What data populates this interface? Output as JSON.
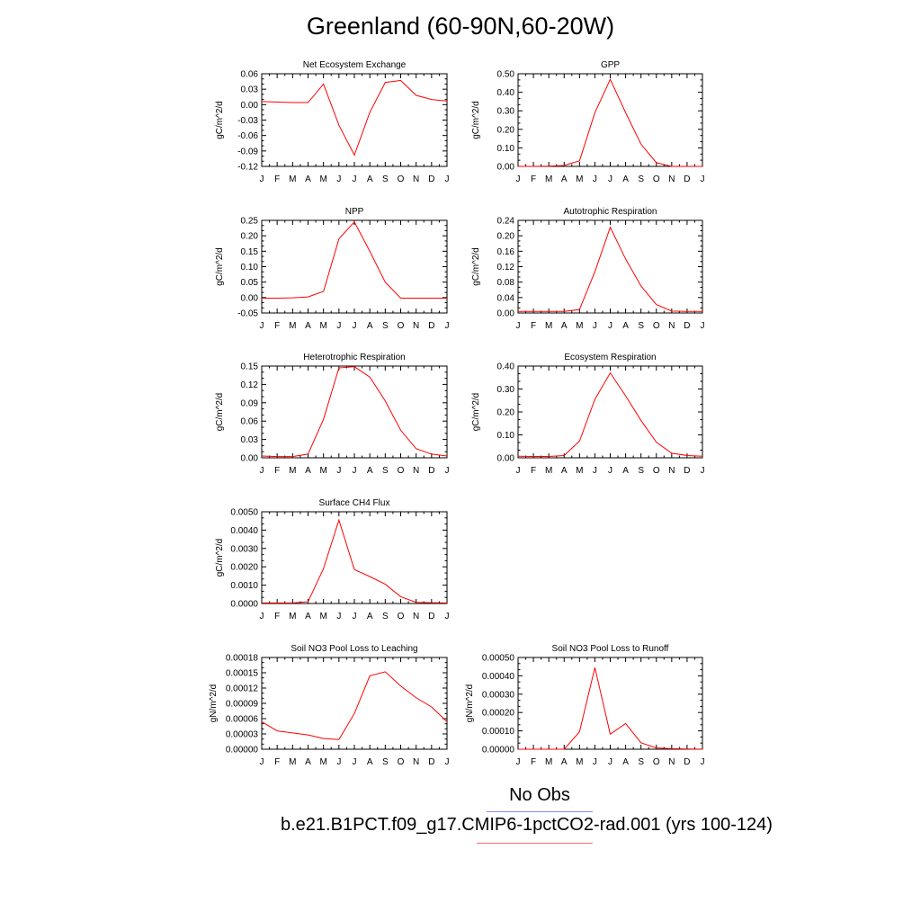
{
  "title": "Greenland (60-90N,60-20W)",
  "legend": {
    "obs_label": "No Obs",
    "obs_color": "#8c8cff",
    "model_label": "b.e21.B1PCT.f09_g17.CMIP6-1pctCO2-rad.001 (yrs 100-124)",
    "model_color": "#ff6e6e"
  },
  "line_color": "#ff0000",
  "chart_data": [
    {
      "type": "line",
      "title": "Net Ecosystem Exchange",
      "ylabel": "gC/m^2/d",
      "xticks": [
        "J",
        "F",
        "M",
        "A",
        "M",
        "J",
        "J",
        "A",
        "S",
        "O",
        "N",
        "D",
        "J"
      ],
      "yticks": [
        "-0.12",
        "-0.09",
        "-0.06",
        "-0.03",
        "0.00",
        "0.03",
        "0.06"
      ],
      "ylim": [
        -0.12,
        0.06
      ],
      "values": [
        0.006,
        0.005,
        0.004,
        0.004,
        0.04,
        -0.04,
        -0.098,
        -0.015,
        0.043,
        0.047,
        0.018,
        0.01,
        0.007
      ]
    },
    {
      "type": "line",
      "title": "GPP",
      "ylabel": "gC/m^2/d",
      "xticks": [
        "J",
        "F",
        "M",
        "A",
        "M",
        "J",
        "J",
        "A",
        "S",
        "O",
        "N",
        "D",
        "J"
      ],
      "yticks": [
        "0.00",
        "0.10",
        "0.20",
        "0.30",
        "0.40",
        "0.50"
      ],
      "ylim": [
        0.0,
        0.5
      ],
      "values": [
        0.0,
        0.0,
        0.001,
        0.005,
        0.03,
        0.29,
        0.47,
        0.29,
        0.12,
        0.02,
        0.0,
        0.0,
        0.0
      ]
    },
    {
      "type": "line",
      "title": "NPP",
      "ylabel": "gC/m^2/d",
      "xticks": [
        "J",
        "F",
        "M",
        "A",
        "M",
        "J",
        "J",
        "A",
        "S",
        "O",
        "N",
        "D",
        "J"
      ],
      "yticks": [
        "-0.05",
        "0.00",
        "0.05",
        "0.10",
        "0.15",
        "0.20",
        "0.25"
      ],
      "ylim": [
        -0.05,
        0.25
      ],
      "values": [
        -0.002,
        -0.002,
        -0.001,
        0.002,
        0.02,
        0.19,
        0.245,
        0.15,
        0.05,
        -0.002,
        -0.002,
        -0.002,
        -0.002
      ]
    },
    {
      "type": "line",
      "title": "Autotrophic Respiration",
      "ylabel": "gC/m^2/d",
      "xticks": [
        "J",
        "F",
        "M",
        "A",
        "M",
        "J",
        "J",
        "A",
        "S",
        "O",
        "N",
        "D",
        "J"
      ],
      "yticks": [
        "0.00",
        "0.04",
        "0.08",
        "0.12",
        "0.16",
        "0.20",
        "0.24"
      ],
      "ylim": [
        0.0,
        0.24
      ],
      "values": [
        0.004,
        0.004,
        0.004,
        0.004,
        0.009,
        0.107,
        0.222,
        0.14,
        0.07,
        0.022,
        0.005,
        0.004,
        0.004
      ]
    },
    {
      "type": "line",
      "title": "Heterotrophic Respiration",
      "ylabel": "gC/m^2/d",
      "xticks": [
        "J",
        "F",
        "M",
        "A",
        "M",
        "J",
        "J",
        "A",
        "S",
        "O",
        "N",
        "D",
        "J"
      ],
      "yticks": [
        "0.00",
        "0.03",
        "0.06",
        "0.09",
        "0.12",
        "0.15"
      ],
      "ylim": [
        0.0,
        0.15
      ],
      "values": [
        0.003,
        0.002,
        0.002,
        0.006,
        0.063,
        0.147,
        0.149,
        0.132,
        0.093,
        0.045,
        0.015,
        0.006,
        0.003
      ]
    },
    {
      "type": "line",
      "title": "Ecosystem Respiration",
      "ylabel": "gC/m^2/d",
      "xticks": [
        "J",
        "F",
        "M",
        "A",
        "M",
        "J",
        "J",
        "A",
        "S",
        "O",
        "N",
        "D",
        "J"
      ],
      "yticks": [
        "0.00",
        "0.10",
        "0.20",
        "0.30",
        "0.40"
      ],
      "ylim": [
        0.0,
        0.4
      ],
      "values": [
        0.007,
        0.006,
        0.006,
        0.01,
        0.073,
        0.255,
        0.37,
        0.27,
        0.163,
        0.068,
        0.02,
        0.01,
        0.007
      ]
    },
    {
      "type": "line",
      "title": "Surface CH4 Flux",
      "ylabel": "gC/m^2/d",
      "xticks": [
        "J",
        "F",
        "M",
        "A",
        "M",
        "J",
        "J",
        "A",
        "S",
        "O",
        "N",
        "D",
        "J"
      ],
      "yticks": [
        "0.0000",
        "0.0010",
        "0.0020",
        "0.0030",
        "0.0040",
        "0.0050"
      ],
      "ylim": [
        0.0,
        0.005
      ],
      "values": [
        3e-05,
        3e-05,
        3e-05,
        0.0001,
        0.0019,
        0.00455,
        0.00185,
        0.00147,
        0.00105,
        0.00037,
        6e-05,
        4e-05,
        3e-05
      ]
    },
    {
      "type": "line",
      "title": "Soil NO3 Pool Loss to Leaching",
      "ylabel": "gN/m^2/d",
      "xticks": [
        "J",
        "F",
        "M",
        "A",
        "M",
        "J",
        "J",
        "A",
        "S",
        "O",
        "N",
        "D",
        "J"
      ],
      "yticks": [
        "0.00000",
        "0.00003",
        "0.00006",
        "0.00009",
        "0.00012",
        "0.00015",
        "0.00018"
      ],
      "ylim": [
        0.0,
        0.00018
      ],
      "values": [
        5.4e-05,
        3.6e-05,
        3.2e-05,
        2.8e-05,
        2.1e-05,
        1.9e-05,
        7e-05,
        0.000144,
        0.000152,
        0.000124,
        0.000101,
        8.3e-05,
        5.4e-05
      ]
    },
    {
      "type": "line",
      "title": "Soil NO3 Pool Loss to Runoff",
      "ylabel": "gN/m^2/d",
      "xticks": [
        "J",
        "F",
        "M",
        "A",
        "M",
        "J",
        "J",
        "A",
        "S",
        "O",
        "N",
        "D",
        "J"
      ],
      "yticks": [
        "0.00000",
        "0.00010",
        "0.00020",
        "0.00030",
        "0.00040",
        "0.00050"
      ],
      "ylim": [
        0.0,
        0.0005
      ],
      "values": [
        0.0,
        0.0,
        0.0,
        0.0,
        9.5e-05,
        0.000445,
        8.2e-05,
        0.00014,
        3.5e-05,
        7e-06,
        3e-06,
        1e-06,
        0.0
      ]
    }
  ]
}
